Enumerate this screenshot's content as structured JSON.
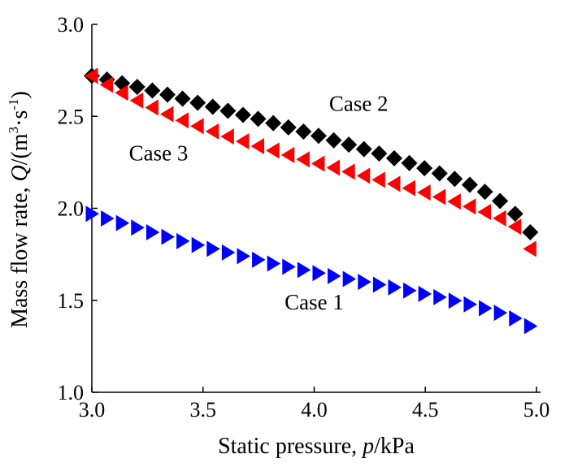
{
  "chart_data": {
    "type": "scatter",
    "xlabel": {
      "prefix": "Static pressure",
      "symbol": "p",
      "unit": "/kPa"
    },
    "ylabel": {
      "prefix": "Mass flow rate",
      "symbol": "Q",
      "unit_open": "/(m",
      "sup1": "3",
      "unit_mid": "·s",
      "sup2": "-1",
      "unit_close": ")"
    },
    "xlim": [
      3.0,
      5.0
    ],
    "ylim": [
      1.0,
      3.0
    ],
    "xticks": [
      "3.0",
      "3.5",
      "4.0",
      "4.5",
      "5.0"
    ],
    "yticks": [
      "1.0",
      "1.5",
      "2.0",
      "2.5",
      "3.0"
    ],
    "series": [
      {
        "name": "Case 1",
        "label": "Case 1",
        "marker": "triangle-right",
        "color": "#0000FF",
        "x": [
          3.0,
          3.068,
          3.136,
          3.204,
          3.272,
          3.34,
          3.408,
          3.476,
          3.544,
          3.612,
          3.68,
          3.748,
          3.816,
          3.884,
          3.952,
          4.02,
          4.088,
          4.156,
          4.224,
          4.292,
          4.36,
          4.428,
          4.496,
          4.564,
          4.632,
          4.7,
          4.768,
          4.836,
          4.904,
          4.972
        ],
        "y": [
          1.97,
          1.945,
          1.92,
          1.895,
          1.87,
          1.845,
          1.822,
          1.8,
          1.78,
          1.76,
          1.74,
          1.72,
          1.7,
          1.682,
          1.665,
          1.648,
          1.632,
          1.616,
          1.6,
          1.585,
          1.57,
          1.553,
          1.535,
          1.517,
          1.498,
          1.478,
          1.457,
          1.432,
          1.402,
          1.36
        ]
      },
      {
        "name": "Case 2",
        "label": "Case 2",
        "marker": "diamond",
        "color": "#000000",
        "x": [
          3.0,
          3.068,
          3.136,
          3.204,
          3.272,
          3.34,
          3.408,
          3.476,
          3.544,
          3.612,
          3.68,
          3.748,
          3.816,
          3.884,
          3.952,
          4.02,
          4.088,
          4.156,
          4.224,
          4.292,
          4.36,
          4.428,
          4.496,
          4.564,
          4.632,
          4.7,
          4.768,
          4.836,
          4.904,
          4.972
        ],
        "y": [
          2.72,
          2.7,
          2.68,
          2.66,
          2.64,
          2.618,
          2.596,
          2.574,
          2.552,
          2.53,
          2.508,
          2.486,
          2.463,
          2.44,
          2.417,
          2.394,
          2.37,
          2.346,
          2.322,
          2.298,
          2.272,
          2.246,
          2.218,
          2.19,
          2.16,
          2.128,
          2.09,
          2.04,
          1.97,
          1.87
        ]
      },
      {
        "name": "Case 3",
        "label": "Case 3",
        "marker": "triangle-left",
        "color": "#FF0000",
        "x": [
          3.0,
          3.068,
          3.136,
          3.204,
          3.272,
          3.34,
          3.408,
          3.476,
          3.544,
          3.612,
          3.68,
          3.748,
          3.816,
          3.884,
          3.952,
          4.02,
          4.088,
          4.156,
          4.224,
          4.292,
          4.36,
          4.428,
          4.496,
          4.564,
          4.632,
          4.7,
          4.768,
          4.836,
          4.904,
          4.972
        ],
        "y": [
          2.72,
          2.672,
          2.628,
          2.586,
          2.548,
          2.512,
          2.478,
          2.447,
          2.418,
          2.39,
          2.364,
          2.338,
          2.314,
          2.29,
          2.266,
          2.243,
          2.221,
          2.199,
          2.177,
          2.155,
          2.133,
          2.11,
          2.086,
          2.062,
          2.037,
          2.01,
          1.98,
          1.946,
          1.9,
          1.78
        ]
      }
    ]
  }
}
